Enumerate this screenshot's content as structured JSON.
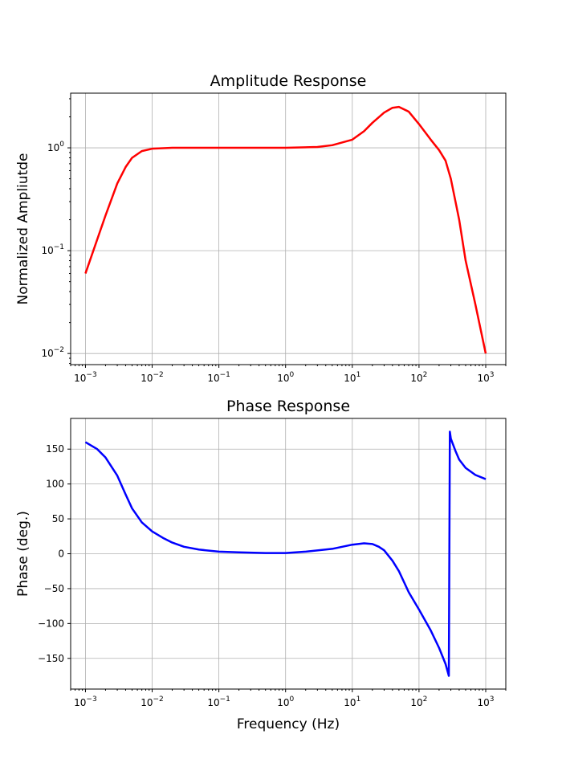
{
  "chart_data": [
    {
      "type": "line",
      "title": "Amplitude Response",
      "xlabel": "",
      "ylabel": "Normalized Ampliutde",
      "xscale": "log",
      "yscale": "log",
      "xlim": [
        0.0006,
        2000
      ],
      "ylim": [
        0.0078,
        3.4
      ],
      "grid": true,
      "x_ticks": [
        {
          "base": "10",
          "exp": "−3",
          "value": 0.001
        },
        {
          "base": "10",
          "exp": "−2",
          "value": 0.01
        },
        {
          "base": "10",
          "exp": "−1",
          "value": 0.1
        },
        {
          "base": "10",
          "exp": "0",
          "value": 1
        },
        {
          "base": "10",
          "exp": "1",
          "value": 10
        },
        {
          "base": "10",
          "exp": "2",
          "value": 100
        },
        {
          "base": "10",
          "exp": "3",
          "value": 1000
        }
      ],
      "y_ticks": [
        {
          "base": "10",
          "exp": "−2",
          "value": 0.01
        },
        {
          "base": "10",
          "exp": "−1",
          "value": 0.1
        },
        {
          "base": "10",
          "exp": "0",
          "value": 1
        }
      ],
      "series": [
        {
          "color": "#ff0000",
          "x": [
            0.001,
            0.002,
            0.003,
            0.004,
            0.005,
            0.007,
            0.01,
            0.02,
            0.05,
            0.1,
            1,
            3,
            5,
            10,
            15,
            20,
            30,
            40,
            50,
            70,
            100,
            150,
            200,
            250,
            300,
            400,
            500,
            700,
            1000
          ],
          "y": [
            0.06,
            0.22,
            0.45,
            0.65,
            0.8,
            0.93,
            0.98,
            1.0,
            1.0,
            1.0,
            1.0,
            1.02,
            1.06,
            1.2,
            1.45,
            1.75,
            2.2,
            2.45,
            2.5,
            2.25,
            1.7,
            1.2,
            0.95,
            0.75,
            0.5,
            0.2,
            0.08,
            0.03,
            0.01
          ]
        }
      ]
    },
    {
      "type": "line",
      "title": "Phase Response",
      "xlabel": "Frequency (Hz)",
      "ylabel": "Phase (deg.)",
      "xscale": "log",
      "xlim": [
        0.0006,
        2000
      ],
      "ylim": [
        -194,
        194
      ],
      "grid": true,
      "x_ticks": [
        {
          "base": "10",
          "exp": "−3",
          "value": 0.001
        },
        {
          "base": "10",
          "exp": "−2",
          "value": 0.01
        },
        {
          "base": "10",
          "exp": "−1",
          "value": 0.1
        },
        {
          "base": "10",
          "exp": "0",
          "value": 1
        },
        {
          "base": "10",
          "exp": "1",
          "value": 10
        },
        {
          "base": "10",
          "exp": "2",
          "value": 100
        },
        {
          "base": "10",
          "exp": "3",
          "value": 1000
        }
      ],
      "y_ticks": [
        {
          "label": "150",
          "value": 150
        },
        {
          "label": "100",
          "value": 100
        },
        {
          "label": "50",
          "value": 50
        },
        {
          "label": "0",
          "value": 0
        },
        {
          "label": "−50",
          "value": -50
        },
        {
          "label": "−100",
          "value": -100
        },
        {
          "label": "−150",
          "value": -150
        }
      ],
      "series": [
        {
          "color": "#0000ff",
          "x": [
            0.001,
            0.0015,
            0.002,
            0.003,
            0.004,
            0.005,
            0.007,
            0.01,
            0.015,
            0.02,
            0.03,
            0.05,
            0.1,
            0.2,
            0.5,
            1,
            2,
            5,
            10,
            15,
            20,
            25,
            30,
            40,
            50,
            70,
            100,
            150,
            200,
            250,
            280,
            290,
            300,
            350,
            400,
            500,
            700,
            1000
          ],
          "y": [
            160,
            150,
            138,
            112,
            85,
            65,
            45,
            32,
            22,
            16,
            10,
            6,
            3,
            2,
            1,
            1,
            3,
            7,
            13,
            15,
            14,
            10,
            5,
            -10,
            -25,
            -55,
            -80,
            -110,
            -135,
            -158,
            -175,
            175,
            165,
            148,
            135,
            123,
            113,
            107
          ]
        }
      ]
    }
  ]
}
